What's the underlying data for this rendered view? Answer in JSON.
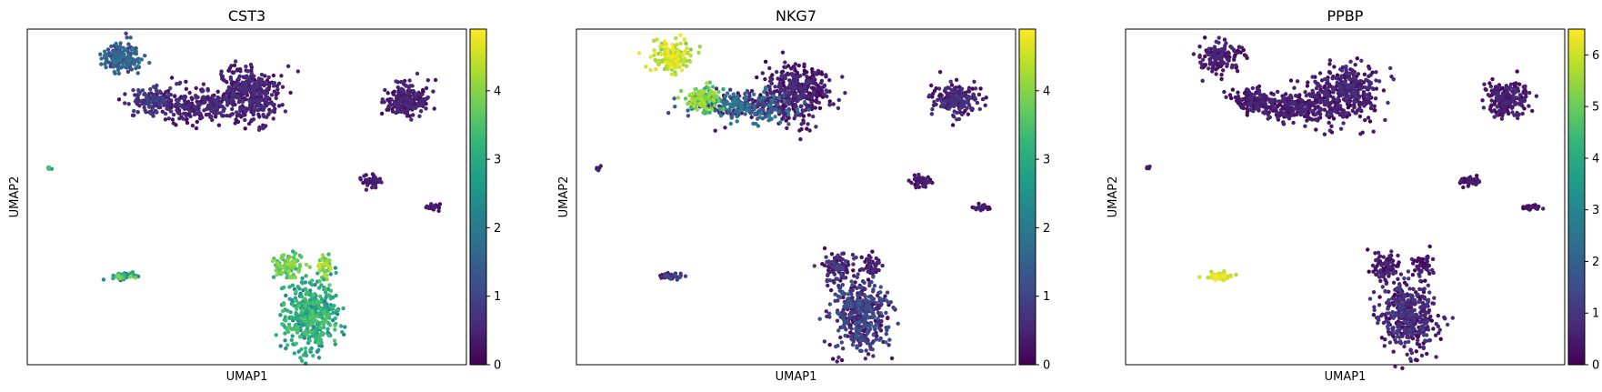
{
  "chart_data": [
    {
      "type": "scatter",
      "title": "CST3",
      "xlabel": "UMAP1",
      "ylabel": "UMAP2",
      "colorbar": {
        "colormap": "viridis",
        "range": [
          0,
          4.9
        ],
        "ticks": [
          0,
          1,
          2,
          3,
          4
        ]
      },
      "grid": false,
      "clusters": [
        {
          "cx": -6.8,
          "cy": 7.8,
          "rx": 0.8,
          "ry": 0.9,
          "n": 150,
          "expr": [
            0.8,
            1.9
          ]
        },
        {
          "cx": -5.4,
          "cy": 5.2,
          "rx": 0.8,
          "ry": 0.6,
          "n": 120,
          "expr": [
            0.3,
            1.0
          ]
        },
        {
          "cx": -3.5,
          "cy": 4.8,
          "rx": 2.0,
          "ry": 0.9,
          "n": 260,
          "expr": [
            0.1,
            0.7
          ]
        },
        {
          "cx": -1.2,
          "cy": 5.6,
          "rx": 1.3,
          "ry": 1.5,
          "n": 360,
          "expr": [
            0.1,
            0.7
          ]
        },
        {
          "cx": 5.9,
          "cy": 5.2,
          "rx": 0.9,
          "ry": 0.9,
          "n": 200,
          "expr": [
            0.1,
            0.6
          ]
        },
        {
          "cx": 4.3,
          "cy": 0.2,
          "rx": 0.4,
          "ry": 0.35,
          "n": 45,
          "expr": [
            0.1,
            0.5
          ]
        },
        {
          "cx": 7.0,
          "cy": -1.4,
          "rx": 0.35,
          "ry": 0.15,
          "n": 25,
          "expr": [
            0.1,
            0.5
          ]
        },
        {
          "cx": -10.0,
          "cy": 1.0,
          "rx": 0.12,
          "ry": 0.12,
          "n": 6,
          "expr": [
            2.5,
            3.5
          ]
        },
        {
          "cx": -6.8,
          "cy": -5.6,
          "rx": 0.5,
          "ry": 0.2,
          "n": 45,
          "expr": [
            1.8,
            4.2
          ]
        },
        {
          "cx": 0.6,
          "cy": -5.0,
          "rx": 0.6,
          "ry": 0.8,
          "n": 90,
          "expr": [
            3.0,
            4.2
          ]
        },
        {
          "cx": 1.6,
          "cy": -8.0,
          "rx": 1.1,
          "ry": 1.9,
          "n": 420,
          "expr": [
            2.2,
            3.6
          ]
        },
        {
          "cx": 2.2,
          "cy": -5.0,
          "rx": 0.35,
          "ry": 0.8,
          "n": 45,
          "expr": [
            3.2,
            4.6
          ]
        }
      ]
    },
    {
      "type": "scatter",
      "title": "NKG7",
      "xlabel": "UMAP1",
      "ylabel": "UMAP2",
      "colorbar": {
        "colormap": "viridis",
        "range": [
          0,
          4.9
        ],
        "ticks": [
          0,
          1,
          2,
          3,
          4
        ]
      },
      "grid": false,
      "clusters": [
        {
          "cx": -6.8,
          "cy": 7.8,
          "rx": 0.8,
          "ry": 0.9,
          "n": 150,
          "expr": [
            3.8,
            4.9
          ]
        },
        {
          "cx": -5.4,
          "cy": 5.2,
          "rx": 0.8,
          "ry": 0.6,
          "n": 120,
          "expr": [
            2.8,
            4.4
          ]
        },
        {
          "cx": -3.5,
          "cy": 4.8,
          "rx": 2.0,
          "ry": 0.9,
          "n": 260,
          "expr": [
            0.2,
            2.2
          ]
        },
        {
          "cx": -1.2,
          "cy": 5.6,
          "rx": 1.3,
          "ry": 1.5,
          "n": 360,
          "expr": [
            0.0,
            0.7
          ]
        },
        {
          "cx": 5.9,
          "cy": 5.2,
          "rx": 0.9,
          "ry": 0.9,
          "n": 200,
          "expr": [
            0.0,
            0.8
          ]
        },
        {
          "cx": 4.3,
          "cy": 0.2,
          "rx": 0.4,
          "ry": 0.35,
          "n": 45,
          "expr": [
            0.0,
            0.5
          ]
        },
        {
          "cx": 7.0,
          "cy": -1.4,
          "rx": 0.35,
          "ry": 0.15,
          "n": 25,
          "expr": [
            0.0,
            0.5
          ]
        },
        {
          "cx": -10.0,
          "cy": 1.0,
          "rx": 0.12,
          "ry": 0.12,
          "n": 6,
          "expr": [
            0.0,
            0.5
          ]
        },
        {
          "cx": -6.8,
          "cy": -5.6,
          "rx": 0.5,
          "ry": 0.2,
          "n": 45,
          "expr": [
            0.0,
            1.2
          ]
        },
        {
          "cx": 0.6,
          "cy": -5.0,
          "rx": 0.6,
          "ry": 0.8,
          "n": 90,
          "expr": [
            0.0,
            1.0
          ]
        },
        {
          "cx": 1.6,
          "cy": -8.0,
          "rx": 1.1,
          "ry": 1.9,
          "n": 420,
          "expr": [
            0.0,
            1.4
          ]
        },
        {
          "cx": 2.2,
          "cy": -5.0,
          "rx": 0.35,
          "ry": 0.8,
          "n": 45,
          "expr": [
            0.0,
            0.6
          ]
        }
      ]
    },
    {
      "type": "scatter",
      "title": "PPBP",
      "xlabel": "UMAP1",
      "ylabel": "UMAP2",
      "colorbar": {
        "colormap": "viridis",
        "range": [
          0,
          6.5
        ],
        "ticks": [
          0,
          1,
          2,
          3,
          4,
          5,
          6
        ]
      },
      "grid": false,
      "clusters": [
        {
          "cx": -6.8,
          "cy": 7.8,
          "rx": 0.8,
          "ry": 0.9,
          "n": 150,
          "expr": [
            0.0,
            0.8
          ]
        },
        {
          "cx": -5.4,
          "cy": 5.2,
          "rx": 0.8,
          "ry": 0.6,
          "n": 120,
          "expr": [
            0.0,
            0.8
          ]
        },
        {
          "cx": -3.5,
          "cy": 4.8,
          "rx": 2.0,
          "ry": 0.9,
          "n": 260,
          "expr": [
            0.0,
            0.8
          ]
        },
        {
          "cx": -1.2,
          "cy": 5.6,
          "rx": 1.3,
          "ry": 1.5,
          "n": 360,
          "expr": [
            0.0,
            0.9
          ]
        },
        {
          "cx": 5.9,
          "cy": 5.2,
          "rx": 0.9,
          "ry": 0.9,
          "n": 200,
          "expr": [
            0.0,
            0.8
          ]
        },
        {
          "cx": 4.3,
          "cy": 0.2,
          "rx": 0.4,
          "ry": 0.35,
          "n": 45,
          "expr": [
            0.0,
            0.6
          ]
        },
        {
          "cx": 7.0,
          "cy": -1.4,
          "rx": 0.35,
          "ry": 0.15,
          "n": 25,
          "expr": [
            0.0,
            0.6
          ]
        },
        {
          "cx": -10.0,
          "cy": 1.0,
          "rx": 0.12,
          "ry": 0.12,
          "n": 6,
          "expr": [
            0.0,
            0.5
          ]
        },
        {
          "cx": -6.8,
          "cy": -5.6,
          "rx": 0.5,
          "ry": 0.2,
          "n": 45,
          "expr": [
            5.6,
            6.5
          ]
        },
        {
          "cx": 0.6,
          "cy": -5.0,
          "rx": 0.6,
          "ry": 0.8,
          "n": 90,
          "expr": [
            0.0,
            0.8
          ]
        },
        {
          "cx": 1.6,
          "cy": -8.0,
          "rx": 1.1,
          "ry": 1.9,
          "n": 420,
          "expr": [
            0.0,
            1.2
          ]
        },
        {
          "cx": 2.2,
          "cy": -5.0,
          "rx": 0.35,
          "ry": 0.8,
          "n": 45,
          "expr": [
            0.0,
            0.6
          ]
        }
      ]
    }
  ]
}
